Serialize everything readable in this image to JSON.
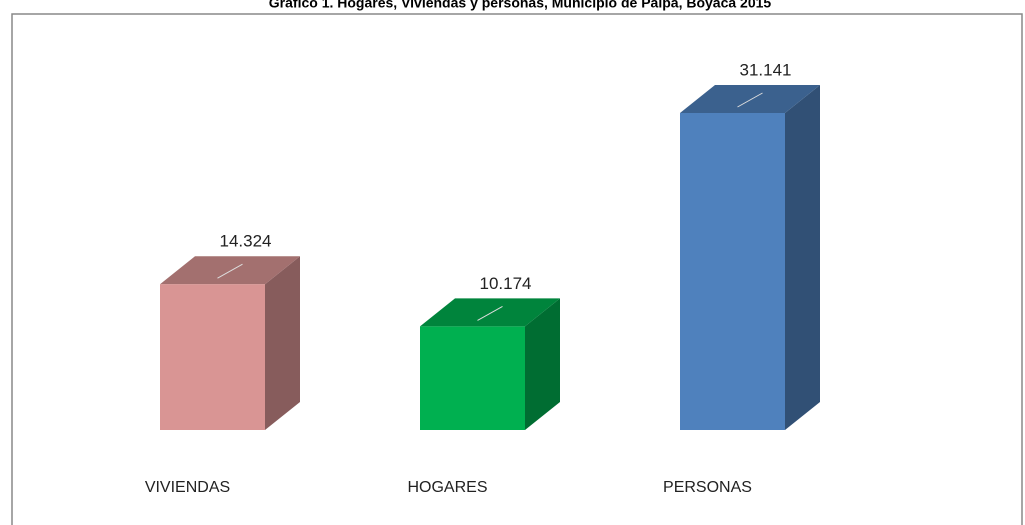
{
  "chart_data": {
    "type": "bar3d",
    "title": "Gráfico 1. Hogares, Viviendas y personas, Municipio de Paipa, Boyacá 2015",
    "categories": [
      "VIVIENDAS",
      "HOGARES",
      "PERSONAS"
    ],
    "values": [
      14324,
      10174,
      31141
    ],
    "value_labels": [
      "14.324",
      "10.174",
      "31.141"
    ],
    "colors": [
      "#d99594",
      "#00b050",
      "#4f81bd"
    ]
  }
}
